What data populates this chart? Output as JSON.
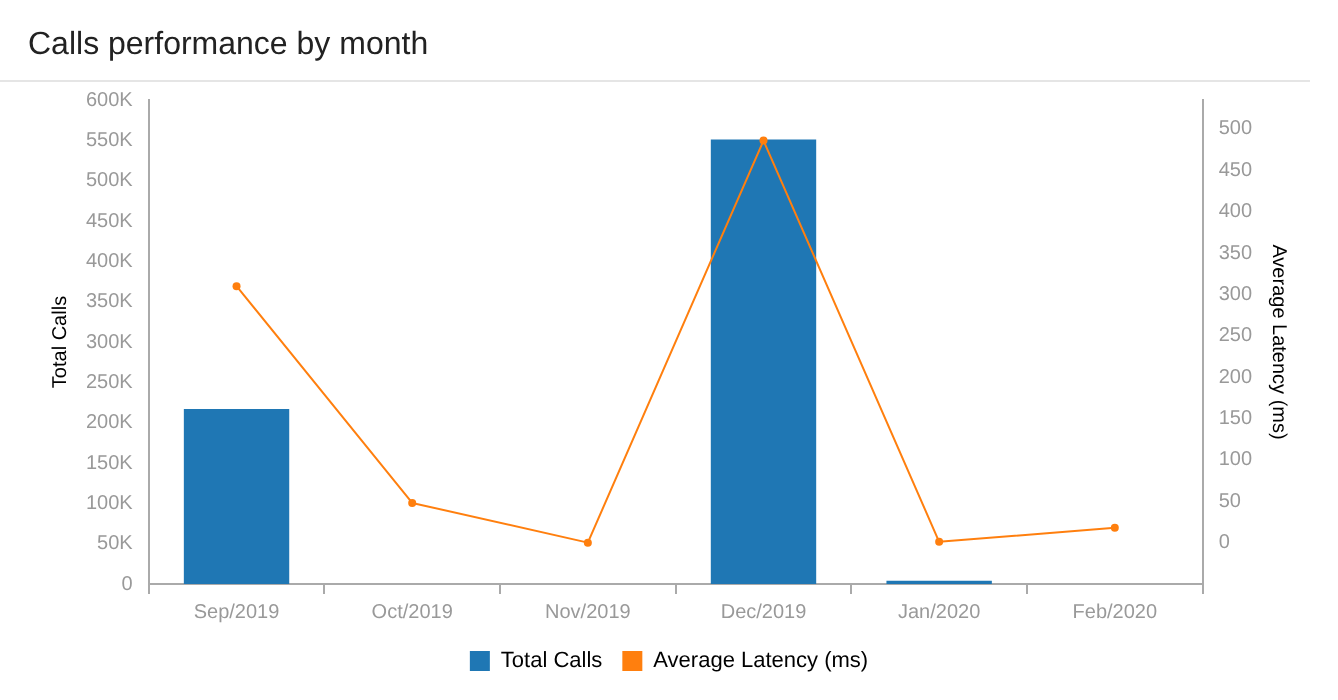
{
  "chart_data": {
    "type": "bar",
    "title": "Calls performance by month",
    "ylabel": "Total Calls",
    "y2label": "Average Latency (ms)",
    "categories": [
      "Sep/2019",
      "Oct/2019",
      "Nov/2019",
      "Dec/2019",
      "Jan/2020",
      "Feb/2020"
    ],
    "series": [
      {
        "name": "Total Calls",
        "color": "#1f77b4",
        "values": [
          217000,
          0,
          0,
          551000,
          4000,
          0
        ]
      },
      {
        "name": "Average Latency (ms)",
        "type": "line",
        "axis": "y2",
        "color": "#ff7f0e",
        "values": [
          310,
          48,
          0,
          486,
          1,
          18
        ]
      }
    ],
    "ylim": [
      0,
      600000
    ],
    "yticks": [
      {
        "value": 0,
        "label": "0"
      },
      {
        "value": 50000,
        "label": "50K"
      },
      {
        "value": 100000,
        "label": "100K"
      },
      {
        "value": 150000,
        "label": "150K"
      },
      {
        "value": 200000,
        "label": "200K"
      },
      {
        "value": 250000,
        "label": "250K"
      },
      {
        "value": 300000,
        "label": "300K"
      },
      {
        "value": 350000,
        "label": "350K"
      },
      {
        "value": 400000,
        "label": "400K"
      },
      {
        "value": 450000,
        "label": "450K"
      },
      {
        "value": 500000,
        "label": "500K"
      },
      {
        "value": 550000,
        "label": "550K"
      },
      {
        "value": 600000,
        "label": "600K"
      }
    ],
    "y2lim": [
      -50,
      535
    ],
    "y2ticks": [
      0,
      50,
      100,
      150,
      200,
      250,
      300,
      350,
      400,
      450,
      500
    ],
    "grid": false,
    "legend": "bottom",
    "marker": "circle",
    "line_style": "solid"
  }
}
